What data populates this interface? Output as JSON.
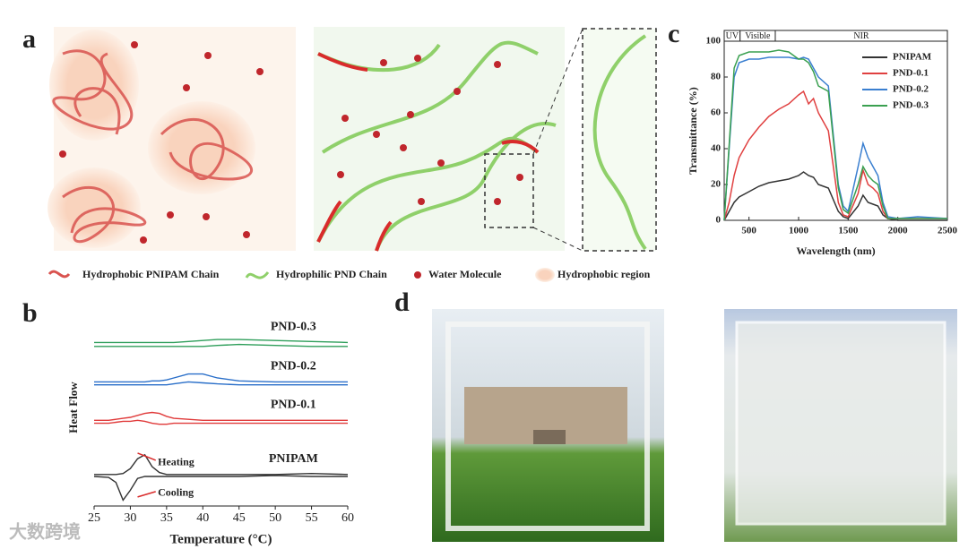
{
  "panels": [
    "a",
    "b",
    "c",
    "d"
  ],
  "legend_a": [
    "Hydrophobic PNIPAM Chain",
    "Hydrophilic PND Chain",
    "Water Molecule",
    "Hydrophobic region"
  ],
  "watermark": "大数跨境",
  "chart_data": [
    {
      "type": "line",
      "xlabel": "Wavelength (nm)",
      "ylabel": "Transmittance (%)",
      "xlim": [
        250,
        2500
      ],
      "ylim": [
        0,
        100
      ],
      "xticks": [
        500,
        1000,
        1500,
        2000,
        2500
      ],
      "yticks": [
        0,
        20,
        40,
        60,
        80,
        100
      ],
      "legend": "upper right",
      "regions": [
        {
          "label": "UV",
          "from": 250,
          "to": 410
        },
        {
          "label": "Visible",
          "from": 410,
          "to": 765
        },
        {
          "label": "NIR",
          "from": 765,
          "to": 2500
        }
      ],
      "x": [
        250,
        300,
        350,
        400,
        500,
        600,
        700,
        800,
        900,
        1000,
        1050,
        1100,
        1150,
        1200,
        1300,
        1400,
        1450,
        1500,
        1600,
        1650,
        1700,
        1750,
        1800,
        1850,
        1900,
        2000,
        2200,
        2500
      ],
      "series": [
        {
          "name": "PNIPAM",
          "color": "#333333",
          "values": [
            0,
            5,
            10,
            13,
            16,
            19,
            21,
            22,
            23,
            25,
            27,
            25,
            24,
            20,
            18,
            5,
            2,
            1,
            8,
            14,
            10,
            9,
            8,
            3,
            1,
            0,
            0,
            0
          ]
        },
        {
          "name": "PND-0.1",
          "color": "#e04040",
          "values": [
            0,
            10,
            25,
            35,
            45,
            52,
            58,
            62,
            65,
            70,
            72,
            65,
            68,
            60,
            50,
            10,
            3,
            2,
            15,
            28,
            20,
            18,
            15,
            5,
            1,
            1,
            1,
            1
          ]
        },
        {
          "name": "PND-0.2",
          "color": "#3a7fd0",
          "values": [
            0,
            40,
            80,
            88,
            90,
            90,
            91,
            91,
            91,
            90,
            91,
            90,
            85,
            80,
            75,
            20,
            8,
            5,
            30,
            43,
            35,
            30,
            25,
            10,
            2,
            1,
            2,
            1
          ]
        },
        {
          "name": "PND-0.3",
          "color": "#3aa050",
          "values": [
            0,
            42,
            85,
            92,
            94,
            94,
            94,
            95,
            94,
            90,
            90,
            88,
            83,
            75,
            72,
            18,
            6,
            4,
            20,
            30,
            25,
            22,
            20,
            8,
            1,
            1,
            1,
            1
          ]
        }
      ]
    },
    {
      "type": "dsc",
      "xlabel": "Temperature (°C)",
      "ylabel": "Heat Flow",
      "xlim": [
        25,
        60
      ],
      "ylim": [
        0,
        10
      ],
      "xticks": [
        25,
        30,
        35,
        40,
        45,
        50,
        55,
        60
      ],
      "annotations": [
        "Heating",
        "Cooling"
      ],
      "x": [
        25,
        27,
        28,
        29,
        30,
        31,
        32,
        33,
        34,
        35,
        36,
        38,
        40,
        42,
        45,
        50,
        55,
        60
      ],
      "series": [
        {
          "name": "PNIPAM",
          "color": "#333333",
          "heating": [
            1.6,
            1.6,
            1.6,
            1.65,
            1.9,
            2.4,
            2.6,
            2.0,
            1.7,
            1.6,
            1.6,
            1.6,
            1.6,
            1.6,
            1.6,
            1.6,
            1.65,
            1.6
          ],
          "cooling": [
            1.5,
            1.45,
            1.2,
            0.3,
            0.8,
            1.4,
            1.5,
            1.5,
            1.5,
            1.5,
            1.5,
            1.5,
            1.5,
            1.5,
            1.5,
            1.55,
            1.5,
            1.5
          ]
        },
        {
          "name": "PND-0.1",
          "color": "#e03a3a",
          "heating": [
            4.35,
            4.35,
            4.4,
            4.45,
            4.5,
            4.6,
            4.7,
            4.75,
            4.7,
            4.55,
            4.45,
            4.4,
            4.35,
            4.35,
            4.35,
            4.35,
            4.35,
            4.35
          ],
          "cooling": [
            4.2,
            4.2,
            4.25,
            4.3,
            4.3,
            4.35,
            4.3,
            4.2,
            4.15,
            4.15,
            4.2,
            4.2,
            4.2,
            4.2,
            4.2,
            4.2,
            4.2,
            4.2
          ]
        },
        {
          "name": "PND-0.2",
          "color": "#2a6fc9",
          "heating": [
            6.3,
            6.3,
            6.3,
            6.3,
            6.3,
            6.3,
            6.3,
            6.35,
            6.35,
            6.4,
            6.5,
            6.7,
            6.7,
            6.5,
            6.35,
            6.3,
            6.3,
            6.3
          ],
          "cooling": [
            6.15,
            6.15,
            6.15,
            6.15,
            6.15,
            6.15,
            6.15,
            6.15,
            6.15,
            6.15,
            6.2,
            6.3,
            6.25,
            6.2,
            6.15,
            6.15,
            6.15,
            6.15
          ]
        },
        {
          "name": "PND-0.3",
          "color": "#2e9e5a",
          "heating": [
            8.3,
            8.3,
            8.3,
            8.3,
            8.3,
            8.3,
            8.3,
            8.3,
            8.3,
            8.3,
            8.3,
            8.35,
            8.4,
            8.45,
            8.45,
            8.4,
            8.35,
            8.3
          ],
          "cooling": [
            8.1,
            8.1,
            8.1,
            8.1,
            8.1,
            8.1,
            8.1,
            8.1,
            8.1,
            8.1,
            8.1,
            8.1,
            8.1,
            8.15,
            8.2,
            8.15,
            8.1,
            8.1
          ]
        }
      ]
    }
  ]
}
